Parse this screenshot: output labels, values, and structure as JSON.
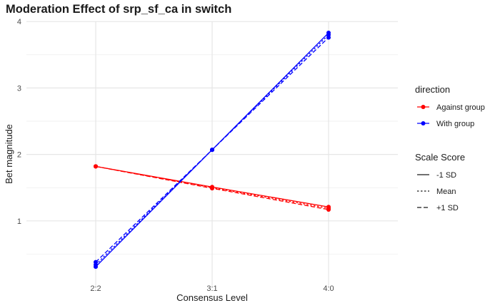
{
  "chart_data": {
    "type": "line",
    "title": "Moderation Effect of srp_sf_ca in switch",
    "xlabel": "Consensus Level",
    "ylabel": "Bet magnitude",
    "categories": [
      "2:2",
      "3:1",
      "4:0"
    ],
    "ylim": [
      0,
      4
    ],
    "yticks": [
      1,
      2,
      3,
      4
    ],
    "grid": true,
    "legend_placement": "right",
    "color_legend": {
      "title": "direction",
      "entries": [
        {
          "label": "Against group",
          "color": "#ff0000"
        },
        {
          "label": "With group",
          "color": "#0000ff"
        }
      ]
    },
    "linetype_legend": {
      "title": "Scale Score",
      "entries": [
        {
          "label": "-1 SD",
          "linetype": "solid"
        },
        {
          "label": "Mean",
          "linetype": "dotted"
        },
        {
          "label": "+1 SD",
          "linetype": "dashed"
        }
      ]
    },
    "series": [
      {
        "direction": "Against group",
        "scale": "-1 SD",
        "values": [
          1.82,
          1.51,
          1.21
        ]
      },
      {
        "direction": "Against group",
        "scale": "Mean",
        "values": [
          1.82,
          1.5,
          1.19
        ]
      },
      {
        "direction": "Against group",
        "scale": "+1 SD",
        "values": [
          1.82,
          1.49,
          1.17
        ]
      },
      {
        "direction": "With group",
        "scale": "-1 SD",
        "values": [
          0.31,
          2.07,
          3.83
        ]
      },
      {
        "direction": "With group",
        "scale": "Mean",
        "values": [
          0.34,
          2.07,
          3.8
        ]
      },
      {
        "direction": "With group",
        "scale": "+1 SD",
        "values": [
          0.38,
          2.07,
          3.76
        ]
      }
    ]
  }
}
